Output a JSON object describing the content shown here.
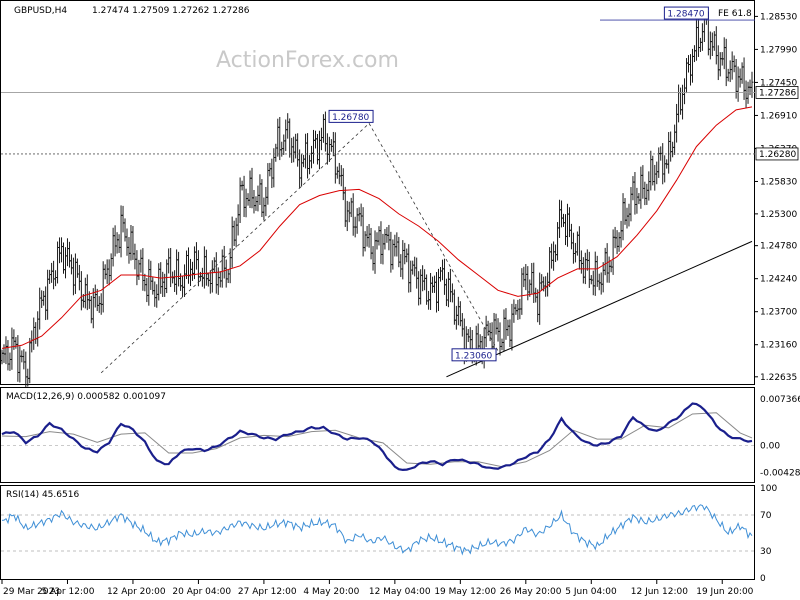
{
  "header": {
    "symbol": "GBPUSD,H4",
    "ohlc": "1.27474 1.27509 1.27262 1.27286",
    "watermark": "ActionForex.com",
    "fe_label": "FE 61.8"
  },
  "colors": {
    "price_bars": "#1a1a1a",
    "sma": "#d90000",
    "macd": "#1a1f8c",
    "signal": "#8a8a8a",
    "rsi": "#3f8fd6",
    "level_box": "#1a1f8c"
  },
  "chart_data": [
    {
      "type": "bar",
      "panel": "price",
      "title": "GBPUSD,H4",
      "ylim": [
        1.2255,
        1.287
      ],
      "y_ticks": [
        "1.28530",
        "1.27990",
        "1.27450",
        "1.26910",
        "1.26370",
        "1.25830",
        "1.25300",
        "1.24780",
        "1.24240",
        "1.23700",
        "1.23160",
        "1.22635"
      ],
      "x_ticks": [
        "29 Mar 2023",
        "5 Apr 12:00",
        "12 Apr 20:00",
        "20 Apr 04:00",
        "27 Apr 12:00",
        "4 May 20:00",
        "12 May 04:00",
        "19 May 12:00",
        "26 May 20:00",
        "5 Jun 04:00",
        "12 Jun 12:00",
        "19 Jun 20:00"
      ],
      "current_price": "1.27286",
      "horizontal_level": "1.26280",
      "labels": [
        "1.26780",
        "1.23060",
        "1.28470"
      ],
      "close_path": [
        [
          0,
          1.229
        ],
        [
          6,
          1.2315
        ],
        [
          12,
          1.227
        ],
        [
          18,
          1.2365
        ],
        [
          24,
          1.242
        ],
        [
          30,
          1.247
        ],
        [
          36,
          1.244
        ],
        [
          42,
          1.239
        ],
        [
          48,
          1.238
        ],
        [
          54,
          1.245
        ],
        [
          60,
          1.251
        ],
        [
          66,
          1.2465
        ],
        [
          72,
          1.242
        ],
        [
          78,
          1.2405
        ],
        [
          84,
          1.244
        ],
        [
          90,
          1.242
        ],
        [
          96,
          1.245
        ],
        [
          102,
          1.243
        ],
        [
          108,
          1.243
        ],
        [
          114,
          1.244
        ],
        [
          120,
          1.256
        ],
        [
          126,
          1.256
        ],
        [
          132,
          1.255
        ],
        [
          138,
          1.264
        ],
        [
          144,
          1.266
        ],
        [
          150,
          1.261
        ],
        [
          156,
          1.263
        ],
        [
          162,
          1.266
        ],
        [
          168,
          1.262
        ],
        [
          174,
          1.253
        ],
        [
          180,
          1.252
        ],
        [
          186,
          1.247
        ],
        [
          192,
          1.249
        ],
        [
          198,
          1.247
        ],
        [
          204,
          1.245
        ],
        [
          210,
          1.242
        ],
        [
          216,
          1.24
        ],
        [
          222,
          1.243
        ],
        [
          228,
          1.238
        ],
        [
          234,
          1.232
        ],
        [
          240,
          1.231
        ],
        [
          246,
          1.234
        ],
        [
          252,
          1.233
        ],
        [
          258,
          1.236
        ],
        [
          264,
          1.243
        ],
        [
          270,
          1.239
        ],
        [
          276,
          1.244
        ],
        [
          282,
          1.253
        ],
        [
          288,
          1.248
        ],
        [
          294,
          1.244
        ],
        [
          300,
          1.242
        ],
        [
          306,
          1.245
        ],
        [
          312,
          1.251
        ],
        [
          318,
          1.256
        ],
        [
          324,
          1.257
        ],
        [
          330,
          1.261
        ],
        [
          336,
          1.262
        ],
        [
          342,
          1.272
        ],
        [
          348,
          1.279
        ],
        [
          354,
          1.284
        ],
        [
          360,
          1.279
        ],
        [
          366,
          1.277
        ],
        [
          372,
          1.275
        ],
        [
          378,
          1.2725
        ]
      ],
      "sma": [
        [
          0,
          1.231
        ],
        [
          10,
          1.2315
        ],
        [
          20,
          1.233
        ],
        [
          30,
          1.236
        ],
        [
          40,
          1.2395
        ],
        [
          50,
          1.2405
        ],
        [
          60,
          1.243
        ],
        [
          70,
          1.243
        ],
        [
          80,
          1.2425
        ],
        [
          90,
          1.2428
        ],
        [
          100,
          1.2432
        ],
        [
          110,
          1.2435
        ],
        [
          120,
          1.2445
        ],
        [
          130,
          1.247
        ],
        [
          140,
          1.251
        ],
        [
          150,
          1.2545
        ],
        [
          160,
          1.256
        ],
        [
          170,
          1.2568
        ],
        [
          180,
          1.257
        ],
        [
          190,
          1.2555
        ],
        [
          200,
          1.253
        ],
        [
          210,
          1.251
        ],
        [
          220,
          1.2485
        ],
        [
          230,
          1.2455
        ],
        [
          240,
          1.243
        ],
        [
          250,
          1.2405
        ],
        [
          260,
          1.2395
        ],
        [
          270,
          1.24
        ],
        [
          280,
          1.2425
        ],
        [
          290,
          1.244
        ],
        [
          300,
          1.244
        ],
        [
          310,
          1.246
        ],
        [
          320,
          1.2495
        ],
        [
          330,
          1.2535
        ],
        [
          340,
          1.2585
        ],
        [
          350,
          1.264
        ],
        [
          360,
          1.2675
        ],
        [
          370,
          1.27
        ],
        [
          378,
          1.2705
        ]
      ],
      "trendline_low": [
        [
          224,
          1.22635
        ],
        [
          378,
          1.2485
        ]
      ],
      "fib_path": [
        [
          50,
          1.227
        ],
        [
          185,
          1.2678
        ],
        [
          250,
          1.2306
        ]
      ]
    },
    {
      "type": "line",
      "panel": "macd",
      "title": "MACD(12,26,9) 0.000582 0.001097",
      "ylim": [
        -0.0055,
        0.0085
      ],
      "y_ticks": [
        "0.007366",
        "0.00",
        "-0.004286"
      ],
      "series": [
        {
          "name": "MACD",
          "values": [
            [
              0,
              0.0018
            ],
            [
              6,
              0.0022
            ],
            [
              12,
              0.0005
            ],
            [
              18,
              0.0015
            ],
            [
              24,
              0.0035
            ],
            [
              30,
              0.0025
            ],
            [
              36,
              0.001
            ],
            [
              42,
              -0.0005
            ],
            [
              48,
              -0.001
            ],
            [
              54,
              0.0005
            ],
            [
              60,
              0.0035
            ],
            [
              66,
              0.0025
            ],
            [
              72,
              0.0005
            ],
            [
              78,
              -0.0025
            ],
            [
              84,
              -0.003
            ],
            [
              90,
              -0.001
            ],
            [
              96,
              -0.0005
            ],
            [
              102,
              -0.0008
            ],
            [
              108,
              -0.0002
            ],
            [
              114,
              0.001
            ],
            [
              120,
              0.0022
            ],
            [
              126,
              0.0018
            ],
            [
              132,
              0.0012
            ],
            [
              138,
              0.001
            ],
            [
              144,
              0.0018
            ],
            [
              150,
              0.0022
            ],
            [
              156,
              0.0028
            ],
            [
              162,
              0.0028
            ],
            [
              168,
              0.0018
            ],
            [
              174,
              0.001
            ],
            [
              180,
              0.0012
            ],
            [
              186,
              0.0008
            ],
            [
              192,
              -0.001
            ],
            [
              198,
              -0.0035
            ],
            [
              204,
              -0.004
            ],
            [
              210,
              -0.003
            ],
            [
              216,
              -0.0025
            ],
            [
              222,
              -0.003
            ],
            [
              228,
              -0.0022
            ],
            [
              234,
              -0.0025
            ],
            [
              240,
              -0.003
            ],
            [
              246,
              -0.0037
            ],
            [
              252,
              -0.0035
            ],
            [
              258,
              -0.0028
            ],
            [
              264,
              -0.0018
            ],
            [
              270,
              -0.001
            ],
            [
              276,
              0.001
            ],
            [
              282,
              0.0042
            ],
            [
              288,
              0.002
            ],
            [
              294,
              0.0005
            ],
            [
              300,
              0.0
            ],
            [
              306,
              0.0005
            ],
            [
              312,
              0.0015
            ],
            [
              318,
              0.0045
            ],
            [
              324,
              0.003
            ],
            [
              330,
              0.0022
            ],
            [
              336,
              0.0035
            ],
            [
              342,
              0.0048
            ],
            [
              348,
              0.0068
            ],
            [
              354,
              0.0058
            ],
            [
              360,
              0.0032
            ],
            [
              366,
              0.0015
            ],
            [
              372,
              0.001
            ],
            [
              378,
              0.0006
            ]
          ]
        },
        {
          "name": "Signal",
          "values": [
            [
              0,
              0.0015
            ],
            [
              12,
              0.0014
            ],
            [
              24,
              0.0022
            ],
            [
              36,
              0.0018
            ],
            [
              48,
              0.0005
            ],
            [
              60,
              0.0018
            ],
            [
              72,
              0.002
            ],
            [
              84,
              -0.0012
            ],
            [
              96,
              -0.0012
            ],
            [
              108,
              -0.0005
            ],
            [
              120,
              0.0012
            ],
            [
              132,
              0.0016
            ],
            [
              144,
              0.0014
            ],
            [
              156,
              0.0022
            ],
            [
              168,
              0.0024
            ],
            [
              180,
              0.0012
            ],
            [
              192,
              0.0004
            ],
            [
              204,
              -0.0028
            ],
            [
              216,
              -0.003
            ],
            [
              228,
              -0.0026
            ],
            [
              240,
              -0.0026
            ],
            [
              252,
              -0.0034
            ],
            [
              264,
              -0.0026
            ],
            [
              276,
              -0.0008
            ],
            [
              288,
              0.0024
            ],
            [
              300,
              0.001
            ],
            [
              312,
              0.001
            ],
            [
              324,
              0.0032
            ],
            [
              336,
              0.0028
            ],
            [
              348,
              0.005
            ],
            [
              360,
              0.0052
            ],
            [
              372,
              0.002
            ],
            [
              378,
              0.0012
            ]
          ]
        }
      ]
    },
    {
      "type": "line",
      "panel": "rsi",
      "title": "RSI(14) 45.6516",
      "ylim": [
        0,
        100
      ],
      "y_ticks": [
        "100",
        "70",
        "30",
        "0"
      ],
      "series": [
        {
          "name": "RSI(14)",
          "values": [
            [
              0,
              62
            ],
            [
              6,
              70
            ],
            [
              12,
              55
            ],
            [
              18,
              60
            ],
            [
              24,
              65
            ],
            [
              30,
              72
            ],
            [
              36,
              62
            ],
            [
              42,
              58
            ],
            [
              48,
              55
            ],
            [
              54,
              62
            ],
            [
              60,
              70
            ],
            [
              66,
              60
            ],
            [
              72,
              52
            ],
            [
              78,
              40
            ],
            [
              84,
              42
            ],
            [
              90,
              50
            ],
            [
              96,
              48
            ],
            [
              102,
              52
            ],
            [
              108,
              50
            ],
            [
              114,
              56
            ],
            [
              120,
              62
            ],
            [
              126,
              58
            ],
            [
              132,
              55
            ],
            [
              138,
              60
            ],
            [
              144,
              62
            ],
            [
              150,
              56
            ],
            [
              156,
              60
            ],
            [
              162,
              62
            ],
            [
              168,
              58
            ],
            [
              174,
              40
            ],
            [
              180,
              48
            ],
            [
              186,
              40
            ],
            [
              192,
              45
            ],
            [
              198,
              35
            ],
            [
              204,
              30
            ],
            [
              210,
              42
            ],
            [
              216,
              45
            ],
            [
              222,
              40
            ],
            [
              228,
              35
            ],
            [
              234,
              30
            ],
            [
              240,
              35
            ],
            [
              246,
              40
            ],
            [
              252,
              38
            ],
            [
              258,
              42
            ],
            [
              264,
              55
            ],
            [
              270,
              48
            ],
            [
              276,
              58
            ],
            [
              282,
              70
            ],
            [
              288,
              50
            ],
            [
              294,
              40
            ],
            [
              300,
              35
            ],
            [
              306,
              48
            ],
            [
              312,
              58
            ],
            [
              318,
              68
            ],
            [
              324,
              62
            ],
            [
              330,
              65
            ],
            [
              336,
              70
            ],
            [
              342,
              72
            ],
            [
              348,
              78
            ],
            [
              354,
              80
            ],
            [
              360,
              65
            ],
            [
              366,
              50
            ],
            [
              372,
              58
            ],
            [
              378,
              46
            ]
          ]
        }
      ]
    }
  ]
}
